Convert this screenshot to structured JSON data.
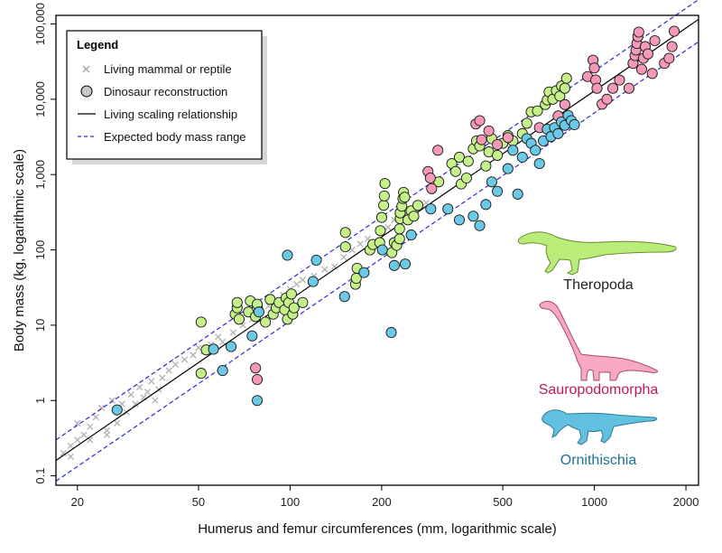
{
  "chart_data": {
    "type": "scatter",
    "xlabel": "Humerus and femur circumferences (mm, logarithmic scale)",
    "ylabel": "Body mass (kg, logarithmic scale)",
    "x_scale": "log",
    "y_scale": "log",
    "xlim": [
      17,
      2200
    ],
    "ylim": [
      0.075,
      130000
    ],
    "x_ticks": [
      20,
      50,
      100,
      200,
      500,
      1000,
      2000
    ],
    "x_tick_labels": [
      "20",
      "50",
      "100",
      "200",
      "500",
      "1000",
      "2000"
    ],
    "y_ticks": [
      0.1,
      1,
      10,
      100,
      1000,
      10000,
      100000
    ],
    "y_tick_labels": [
      "0.1",
      "1",
      "10",
      "100",
      "1,000",
      "10,000",
      "100,000"
    ],
    "grid": false,
    "legend": {
      "title": "Legend",
      "position": "top-left",
      "entries": [
        {
          "label": "Living mammal or reptile",
          "marker": "cross"
        },
        {
          "label": "Dinosaur reconstruction",
          "marker": "circle"
        },
        {
          "label": "Living scaling relationship",
          "marker": "solid-line"
        },
        {
          "label": "Expected body mass range",
          "marker": "dashed-line"
        }
      ]
    },
    "colors": {
      "living": "#b5b5b5",
      "theropoda": "#c6f08a",
      "sauropodomorpha": "#f49ab8",
      "ornithischia": "#6cc9e6",
      "range_line": "#2a2ad0",
      "fit_line": "#000000"
    },
    "groups": [
      {
        "name": "Theropoda",
        "color": "#c6f08a",
        "label_color": "#222222"
      },
      {
        "name": "Sauropodomorpha",
        "color": "#f49ab8",
        "label_color": "#c2185b"
      },
      {
        "name": "Ornithischia",
        "color": "#6cc9e6",
        "label_color": "#1f6f96"
      }
    ],
    "fit_line": {
      "name": "Living scaling relationship",
      "x": [
        17,
        2200
      ],
      "y": [
        0.16,
        115000
      ]
    },
    "range_upper": {
      "name": "Expected body mass range",
      "x": [
        17,
        2200
      ],
      "y": [
        0.3,
        210000
      ]
    },
    "range_lower": {
      "name": "Expected body mass range",
      "x": [
        17,
        2200
      ],
      "y": [
        0.085,
        58000
      ]
    },
    "series": [
      {
        "name": "Living mammal or reptile",
        "marker": "cross",
        "points": [
          [
            18,
            0.2
          ],
          [
            19,
            0.25
          ],
          [
            20,
            0.3
          ],
          [
            21,
            0.35
          ],
          [
            22,
            0.45
          ],
          [
            20,
            0.5
          ],
          [
            23,
            0.6
          ],
          [
            25,
            0.4
          ],
          [
            24,
            0.8
          ],
          [
            26,
            1.0
          ],
          [
            28,
            0.9
          ],
          [
            30,
            1.2
          ],
          [
            32,
            1.5
          ],
          [
            29,
            0.7
          ],
          [
            27,
            0.5
          ],
          [
            34,
            1.3
          ],
          [
            35,
            1.8
          ],
          [
            36,
            1.0
          ],
          [
            38,
            2.0
          ],
          [
            22,
            0.3
          ],
          [
            19,
            0.18
          ],
          [
            25,
            0.35
          ],
          [
            31,
            0.9
          ],
          [
            33,
            1.1
          ],
          [
            37,
            1.4
          ],
          [
            40,
            2.5
          ],
          [
            42,
            3.0
          ],
          [
            45,
            3.5
          ],
          [
            48,
            4.0
          ],
          [
            50,
            5.0
          ],
          [
            52,
            4.5
          ],
          [
            55,
            5.5
          ],
          [
            58,
            7.0
          ],
          [
            60,
            6.0
          ],
          [
            65,
            8.0
          ],
          [
            70,
            10
          ],
          [
            75,
            12
          ],
          [
            80,
            15
          ],
          [
            85,
            18
          ],
          [
            90,
            20
          ],
          [
            95,
            25
          ],
          [
            100,
            30
          ],
          [
            105,
            35
          ],
          [
            110,
            40
          ],
          [
            120,
            45
          ],
          [
            130,
            55
          ],
          [
            140,
            60
          ],
          [
            150,
            80
          ],
          [
            160,
            100
          ],
          [
            170,
            120
          ],
          [
            180,
            140
          ],
          [
            200,
            170
          ],
          [
            210,
            200
          ],
          [
            220,
            250
          ],
          [
            240,
            300
          ],
          [
            260,
            350
          ],
          [
            280,
            420
          ]
        ]
      },
      {
        "name": "Theropoda",
        "marker": "circle",
        "points": [
          [
            51,
            11
          ],
          [
            51,
            2.3
          ],
          [
            53,
            4.7
          ],
          [
            66,
            14
          ],
          [
            67,
            17
          ],
          [
            67,
            20
          ],
          [
            68,
            12
          ],
          [
            73,
            15
          ],
          [
            74,
            21
          ],
          [
            77,
            13
          ],
          [
            78,
            17
          ],
          [
            78,
            19
          ],
          [
            83,
            11
          ],
          [
            86,
            22
          ],
          [
            88,
            14
          ],
          [
            90,
            17
          ],
          [
            92,
            20
          ],
          [
            96,
            16
          ],
          [
            97,
            23
          ],
          [
            98,
            12
          ],
          [
            99,
            20
          ],
          [
            101,
            26
          ],
          [
            102,
            14
          ],
          [
            103,
            17
          ],
          [
            110,
            20
          ],
          [
            152,
            110
          ],
          [
            152,
            170
          ],
          [
            164,
            35
          ],
          [
            165,
            42
          ],
          [
            166,
            57
          ],
          [
            183,
            100
          ],
          [
            187,
            118
          ],
          [
            197,
            125
          ],
          [
            198,
            180
          ],
          [
            200,
            270
          ],
          [
            203,
            390
          ],
          [
            204,
            520
          ],
          [
            205,
            760
          ],
          [
            216,
            92
          ],
          [
            220,
            125
          ],
          [
            224,
            115
          ],
          [
            229,
            140
          ],
          [
            229,
            190
          ],
          [
            230,
            260
          ],
          [
            230,
            310
          ],
          [
            233,
            380
          ],
          [
            235,
            480
          ],
          [
            236,
            580
          ],
          [
            238,
            500
          ],
          [
            244,
            250
          ],
          [
            250,
            330
          ],
          [
            255,
            280
          ],
          [
            263,
            390
          ],
          [
            308,
            800
          ],
          [
            340,
            1400
          ],
          [
            350,
            1100
          ],
          [
            360,
            1700
          ],
          [
            365,
            750
          ],
          [
            380,
            900
          ],
          [
            385,
            1500
          ],
          [
            400,
            2200
          ],
          [
            410,
            2800
          ],
          [
            420,
            2400
          ],
          [
            440,
            1300
          ],
          [
            450,
            2000
          ],
          [
            460,
            3000
          ],
          [
            480,
            1800
          ],
          [
            500,
            2600
          ],
          [
            520,
            3300
          ],
          [
            540,
            2800
          ],
          [
            580,
            3500
          ],
          [
            600,
            4800
          ],
          [
            620,
            6800
          ],
          [
            650,
            7000
          ],
          [
            690,
            8500
          ],
          [
            700,
            9800
          ],
          [
            710,
            12500
          ],
          [
            730,
            10000
          ],
          [
            750,
            13000
          ],
          [
            770,
            11000
          ],
          [
            780,
            15000
          ],
          [
            800,
            14000
          ],
          [
            810,
            19000
          ]
        ]
      },
      {
        "name": "Sauropodomorpha",
        "marker": "circle",
        "points": [
          [
            77,
            2.7
          ],
          [
            78,
            1.9
          ],
          [
            284,
            1100
          ],
          [
            289,
            900
          ],
          [
            292,
            650
          ],
          [
            306,
            2100
          ],
          [
            408,
            4700
          ],
          [
            420,
            5200
          ],
          [
            426,
            2900
          ],
          [
            450,
            3800
          ],
          [
            480,
            2500
          ],
          [
            520,
            3100
          ],
          [
            660,
            4200
          ],
          [
            760,
            6000
          ],
          [
            800,
            8500
          ],
          [
            950,
            20000
          ],
          [
            990,
            33000
          ],
          [
            1000,
            26000
          ],
          [
            1010,
            18000
          ],
          [
            1020,
            14000
          ],
          [
            1060,
            8600
          ],
          [
            1100,
            10000
          ],
          [
            1150,
            14000
          ],
          [
            1210,
            18000
          ],
          [
            1300,
            14000
          ],
          [
            1340,
            30000
          ],
          [
            1360,
            38000
          ],
          [
            1370,
            45000
          ],
          [
            1380,
            55000
          ],
          [
            1390,
            68000
          ],
          [
            1400,
            78000
          ],
          [
            1430,
            25000
          ],
          [
            1450,
            35000
          ],
          [
            1470,
            50000
          ],
          [
            1500,
            40000
          ],
          [
            1550,
            22000
          ],
          [
            1580,
            60000
          ],
          [
            1700,
            30000
          ],
          [
            1760,
            35000
          ],
          [
            1800,
            50000
          ],
          [
            1830,
            80000
          ]
        ]
      },
      {
        "name": "Ornithischia",
        "marker": "circle",
        "points": [
          [
            27,
            0.75
          ],
          [
            56,
            4.8
          ],
          [
            60,
            2.5
          ],
          [
            64,
            5.2
          ],
          [
            75,
            7.2
          ],
          [
            78,
            1.0
          ],
          [
            79,
            15
          ],
          [
            98,
            85
          ],
          [
            119,
            38
          ],
          [
            122,
            73
          ],
          [
            151,
            24
          ],
          [
            175,
            50
          ],
          [
            201,
            100
          ],
          [
            215,
            8.0
          ],
          [
            220,
            62
          ],
          [
            239,
            65
          ],
          [
            250,
            158
          ],
          [
            290,
            350
          ],
          [
            330,
            350
          ],
          [
            360,
            250
          ],
          [
            400,
            280
          ],
          [
            420,
            210
          ],
          [
            440,
            400
          ],
          [
            460,
            800
          ],
          [
            480,
            600
          ],
          [
            520,
            1200
          ],
          [
            540,
            2100
          ],
          [
            560,
            550
          ],
          [
            580,
            1700
          ],
          [
            600,
            3000
          ],
          [
            620,
            2600
          ],
          [
            640,
            2100
          ],
          [
            660,
            1400
          ],
          [
            680,
            2800
          ],
          [
            700,
            4000
          ],
          [
            720,
            3200
          ],
          [
            740,
            4200
          ],
          [
            760,
            3500
          ],
          [
            780,
            5000
          ],
          [
            800,
            4500
          ],
          [
            820,
            6100
          ],
          [
            840,
            5200
          ],
          [
            860,
            4600
          ]
        ]
      }
    ]
  }
}
